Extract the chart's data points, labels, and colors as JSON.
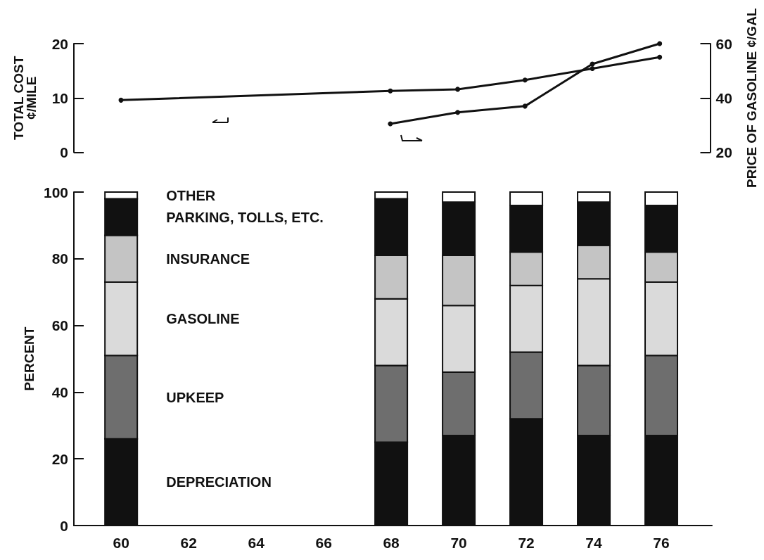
{
  "chart_data": [
    {
      "type": "line",
      "ylabel": "TOTAL COST\n¢/MILE",
      "y2label": "PRICE OF GASOLINE ¢/GAL",
      "xlim": [
        58.6,
        77.5
      ],
      "ylim": [
        0,
        20
      ],
      "yticks": [
        0,
        10,
        20
      ],
      "y2lim": [
        20,
        60
      ],
      "y2ticks": [
        20,
        40,
        60
      ],
      "tick_labels": "y",
      "marker": "circle",
      "series": [
        {
          "color": "#111111",
          "x": [
            60,
            68,
            70,
            72,
            74,
            76
          ],
          "values": [
            9.6,
            11.3,
            11.6,
            13.3,
            15.4,
            17.5
          ]
        },
        {
          "color": "#111111",
          "axis": "y2",
          "x": [
            68,
            70,
            72,
            74,
            76
          ],
          "values": [
            30.5,
            34.7,
            37,
            52.5,
            60
          ]
        }
      ]
    },
    {
      "type": "bar",
      "stacked": true,
      "ylabel": "PERCENT",
      "x": [
        60,
        68,
        70,
        72,
        74,
        76
      ],
      "xlim": [
        58.6,
        77.5
      ],
      "xticks": [
        60,
        62,
        64,
        66,
        68,
        70,
        72,
        74,
        76
      ],
      "ylim": [
        0,
        100
      ],
      "yticks": [
        0,
        20,
        40,
        60,
        80,
        100
      ],
      "series": [
        {
          "name": "DEPRECIATION",
          "color": "#111111",
          "values": [
            26,
            25,
            27,
            32,
            27,
            27
          ]
        },
        {
          "name": "UPKEEP",
          "color": "#6e6e6e",
          "values": [
            25,
            23,
            19,
            20,
            21,
            24
          ]
        },
        {
          "name": "GASOLINE",
          "color": "#dadada",
          "values": [
            22,
            20,
            20,
            20,
            26,
            22
          ]
        },
        {
          "name": "INSURANCE",
          "color": "#c4c4c4",
          "values": [
            14,
            13,
            15,
            10,
            10,
            9
          ]
        },
        {
          "name": "PARKING, TOLLS, ETC.",
          "color": "#111111",
          "values": [
            11,
            17,
            16,
            14,
            13,
            14
          ]
        },
        {
          "name": "OTHER",
          "color": "#ffffff",
          "values": [
            2,
            2,
            3,
            4,
            3,
            4
          ]
        }
      ]
    }
  ]
}
